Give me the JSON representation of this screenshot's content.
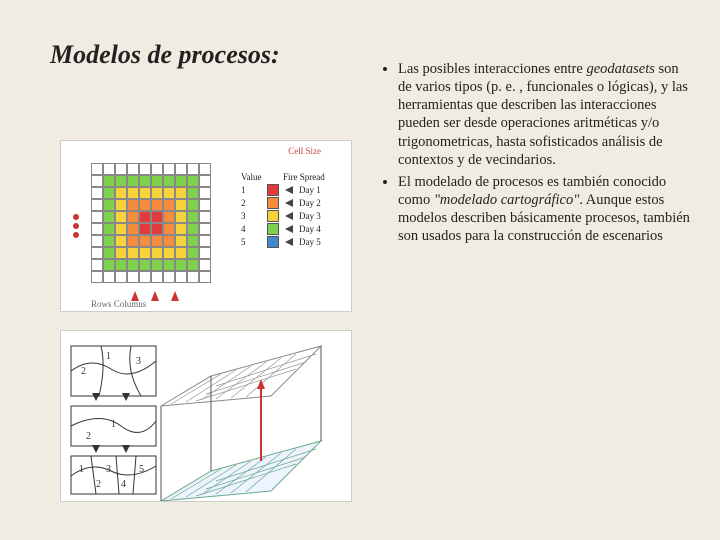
{
  "title": "Modelos de procesos:",
  "bullets": [
    {
      "pre": "Las posibles interacciones entre ",
      "em": "geodatasets",
      "post": " son de varios tipos (p. e. , funcionales o lógicas), y las herramientas que describen las interacciones pueden ser desde operaciones aritméticas y/o trigonometricas, hasta sofisticados análisis de contextos y de vecindarios."
    },
    {
      "pre": " El modelado de procesos es también conocido como ",
      "em": "\"modelado cartográfico\"",
      "post": ". Aunque estos modelos describen básicamente procesos, también son usados para la construcción de escenarios"
    }
  ],
  "fig1": {
    "top_left_label": "",
    "top_right_label": "Cell Size",
    "col_value": "Value",
    "col_spread": "Fire Spread",
    "legend": [
      {
        "v": "1",
        "label": "Day 1",
        "hex": "#e23b3b"
      },
      {
        "v": "2",
        "label": "Day 2",
        "hex": "#f58b3c"
      },
      {
        "v": "3",
        "label": "Day 3",
        "hex": "#f6d33a"
      },
      {
        "v": "4",
        "label": "Day 4",
        "hex": "#7fd04a"
      },
      {
        "v": "5",
        "label": "Day 5",
        "hex": "#4488cc"
      }
    ],
    "bottom": "Rows    Columns",
    "grid_colors": [
      [
        "w",
        "w",
        "w",
        "w",
        "w",
        "w",
        "w",
        "w",
        "w",
        "w"
      ],
      [
        "w",
        "g",
        "g",
        "g",
        "g",
        "g",
        "g",
        "g",
        "g",
        "w"
      ],
      [
        "w",
        "g",
        "y",
        "y",
        "y",
        "y",
        "y",
        "y",
        "g",
        "w"
      ],
      [
        "w",
        "g",
        "y",
        "o",
        "o",
        "o",
        "o",
        "y",
        "g",
        "w"
      ],
      [
        "w",
        "g",
        "y",
        "o",
        "r",
        "r",
        "o",
        "y",
        "g",
        "w"
      ],
      [
        "w",
        "g",
        "y",
        "o",
        "r",
        "r",
        "o",
        "y",
        "g",
        "w"
      ],
      [
        "w",
        "g",
        "y",
        "o",
        "o",
        "o",
        "o",
        "y",
        "g",
        "w"
      ],
      [
        "w",
        "g",
        "y",
        "y",
        "y",
        "y",
        "y",
        "y",
        "g",
        "w"
      ],
      [
        "w",
        "g",
        "g",
        "g",
        "g",
        "g",
        "g",
        "g",
        "g",
        "w"
      ],
      [
        "w",
        "w",
        "w",
        "w",
        "w",
        "w",
        "w",
        "w",
        "w",
        "w"
      ]
    ]
  },
  "fig2": {
    "labels": [
      "1",
      "2",
      "3",
      "4",
      "5",
      "1",
      "2",
      "3"
    ]
  },
  "colors": {
    "background": "#f0ece1",
    "text": "#222222",
    "accent_red": "#c33333"
  }
}
